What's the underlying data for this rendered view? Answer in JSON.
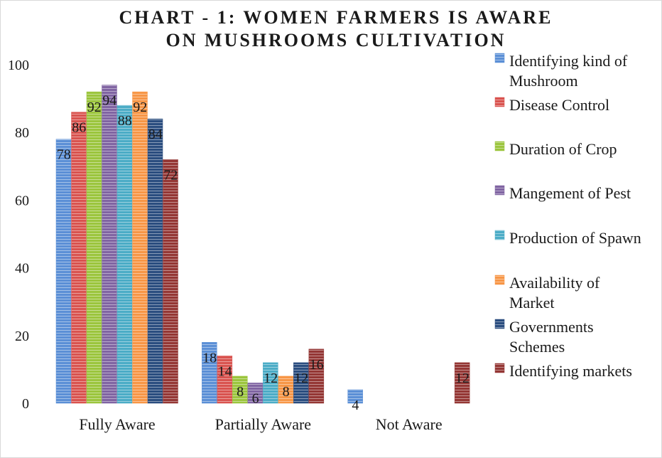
{
  "chart_data": {
    "type": "bar",
    "title_lines": [
      "CHART - 1: WOMEN FARMERS IS AWARE",
      "ON MUSHROOMS CULTIVATION"
    ],
    "xlabel": "",
    "ylabel": "",
    "ylim": [
      0,
      100
    ],
    "yticks": [
      0,
      20,
      40,
      60,
      80,
      100
    ],
    "grid": false,
    "legend_position": "right",
    "categories": [
      "Fully Aware",
      "Partially Aware",
      "Not Aware"
    ],
    "series": [
      {
        "name": "Identifying kind of Mushroom",
        "legend_lines": [
          "Identifying kind of",
          "Mushroom"
        ],
        "color": "#5b8fd6",
        "values": [
          78,
          18,
          4
        ]
      },
      {
        "name": "Disease Control",
        "legend_lines": [
          "Disease Control"
        ],
        "color": "#d9534f",
        "values": [
          86,
          14,
          null
        ]
      },
      {
        "name": "Duration of Crop",
        "legend_lines": [
          "Duration of Crop"
        ],
        "color": "#9bc53d",
        "values": [
          92,
          8,
          null
        ]
      },
      {
        "name": "Mangement of Pest",
        "legend_lines": [
          "Mangement of Pest"
        ],
        "color": "#8064a2",
        "values": [
          94,
          6,
          null
        ]
      },
      {
        "name": "Production of Spawn",
        "legend_lines": [
          "Production of Spawn"
        ],
        "color": "#4bacc6",
        "values": [
          88,
          12,
          null
        ]
      },
      {
        "name": "Availability of Market",
        "legend_lines": [
          "Availability of",
          "Market"
        ],
        "color": "#f79646",
        "values": [
          92,
          8,
          null
        ]
      },
      {
        "name": "Governments Schemes",
        "legend_lines": [
          "Governments",
          "Schemes"
        ],
        "color": "#2a4d7f",
        "values": [
          84,
          12,
          null
        ]
      },
      {
        "name": "Identifying markets",
        "legend_lines": [
          "Identifying markets"
        ],
        "color": "#943634",
        "values": [
          72,
          16,
          12
        ]
      }
    ]
  }
}
